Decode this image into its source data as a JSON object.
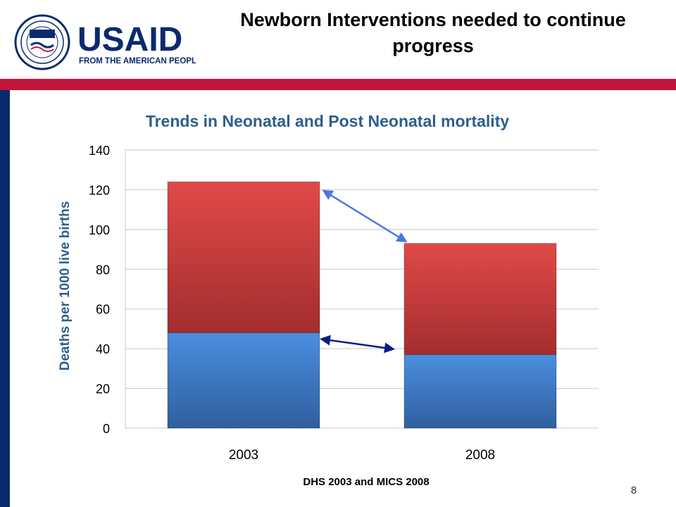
{
  "slide": {
    "title": "Newborn Interventions needed to continue progress",
    "source": "DHS 2003 and MICS 2008",
    "page_number": "8"
  },
  "logo": {
    "wordmark": "USAID",
    "tagline": "FROM THE AMERICAN PEOPLE",
    "seal_text": "UNITED STATES AGENCY INTERNATIONAL DEVELOPMENT"
  },
  "colors": {
    "brand_navy": "#0a2a6e",
    "brand_red": "#c2163c",
    "chart_title": "#2e5e8c",
    "neonatal_bar": "#3a78c8",
    "post_neonatal_bar": "#c0393b",
    "arrow_upper": "#4a78e0",
    "arrow_lower": "#0a1a8a"
  },
  "chart_data": {
    "type": "bar",
    "stacked": true,
    "title": "Trends in Neonatal and Post Neonatal mortality",
    "xlabel": "",
    "ylabel": "Deaths per 1000 live births",
    "categories": [
      "2003",
      "2008"
    ],
    "series": [
      {
        "values": [
          48,
          37
        ]
      },
      {
        "values": [
          76,
          56
        ]
      }
    ],
    "ylim": [
      0,
      140
    ],
    "yticks": [
      0,
      20,
      40,
      60,
      80,
      100,
      120,
      140
    ],
    "grid": true,
    "legend": "none",
    "annotations": [
      "arrow from 2003 total to 2008 total",
      "arrow from 2003 neonatal to 2008 neonatal"
    ]
  }
}
